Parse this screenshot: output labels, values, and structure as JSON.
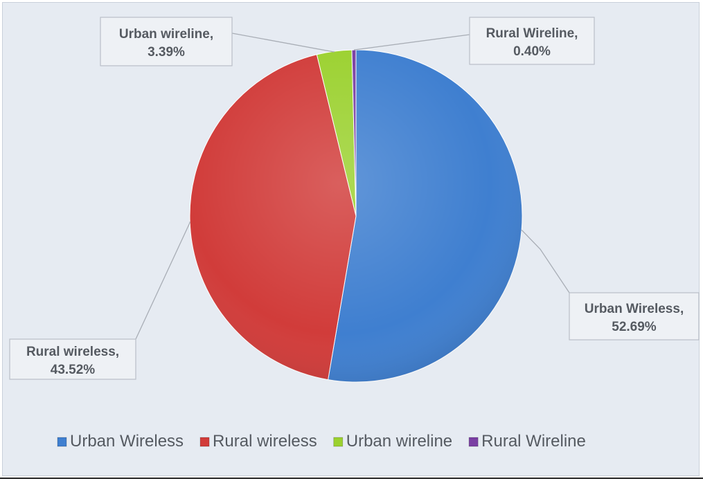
{
  "chart_data": {
    "type": "pie",
    "title": "",
    "legend_position": "bottom",
    "slices": [
      {
        "name": "Urban Wireless",
        "value": 52.69,
        "label": "Urban Wireless,",
        "pct": "52.69%",
        "color": "#3f7fd0"
      },
      {
        "name": "Rural wireless",
        "value": 43.52,
        "label": "Rural wireless,",
        "pct": "43.52%",
        "color": "#d13c3a"
      },
      {
        "name": "Urban wireline",
        "value": 3.39,
        "label": "Urban wireline,",
        "pct": "3.39%",
        "color": "#9bd12f"
      },
      {
        "name": "Rural Wireline",
        "value": 0.4,
        "label": "Rural Wireline,",
        "pct": "0.40%",
        "color": "#7a3fa3"
      }
    ],
    "legend": [
      "Urban Wireless",
      "Rural wireless",
      "Urban wireline",
      "Rural Wireline"
    ]
  }
}
